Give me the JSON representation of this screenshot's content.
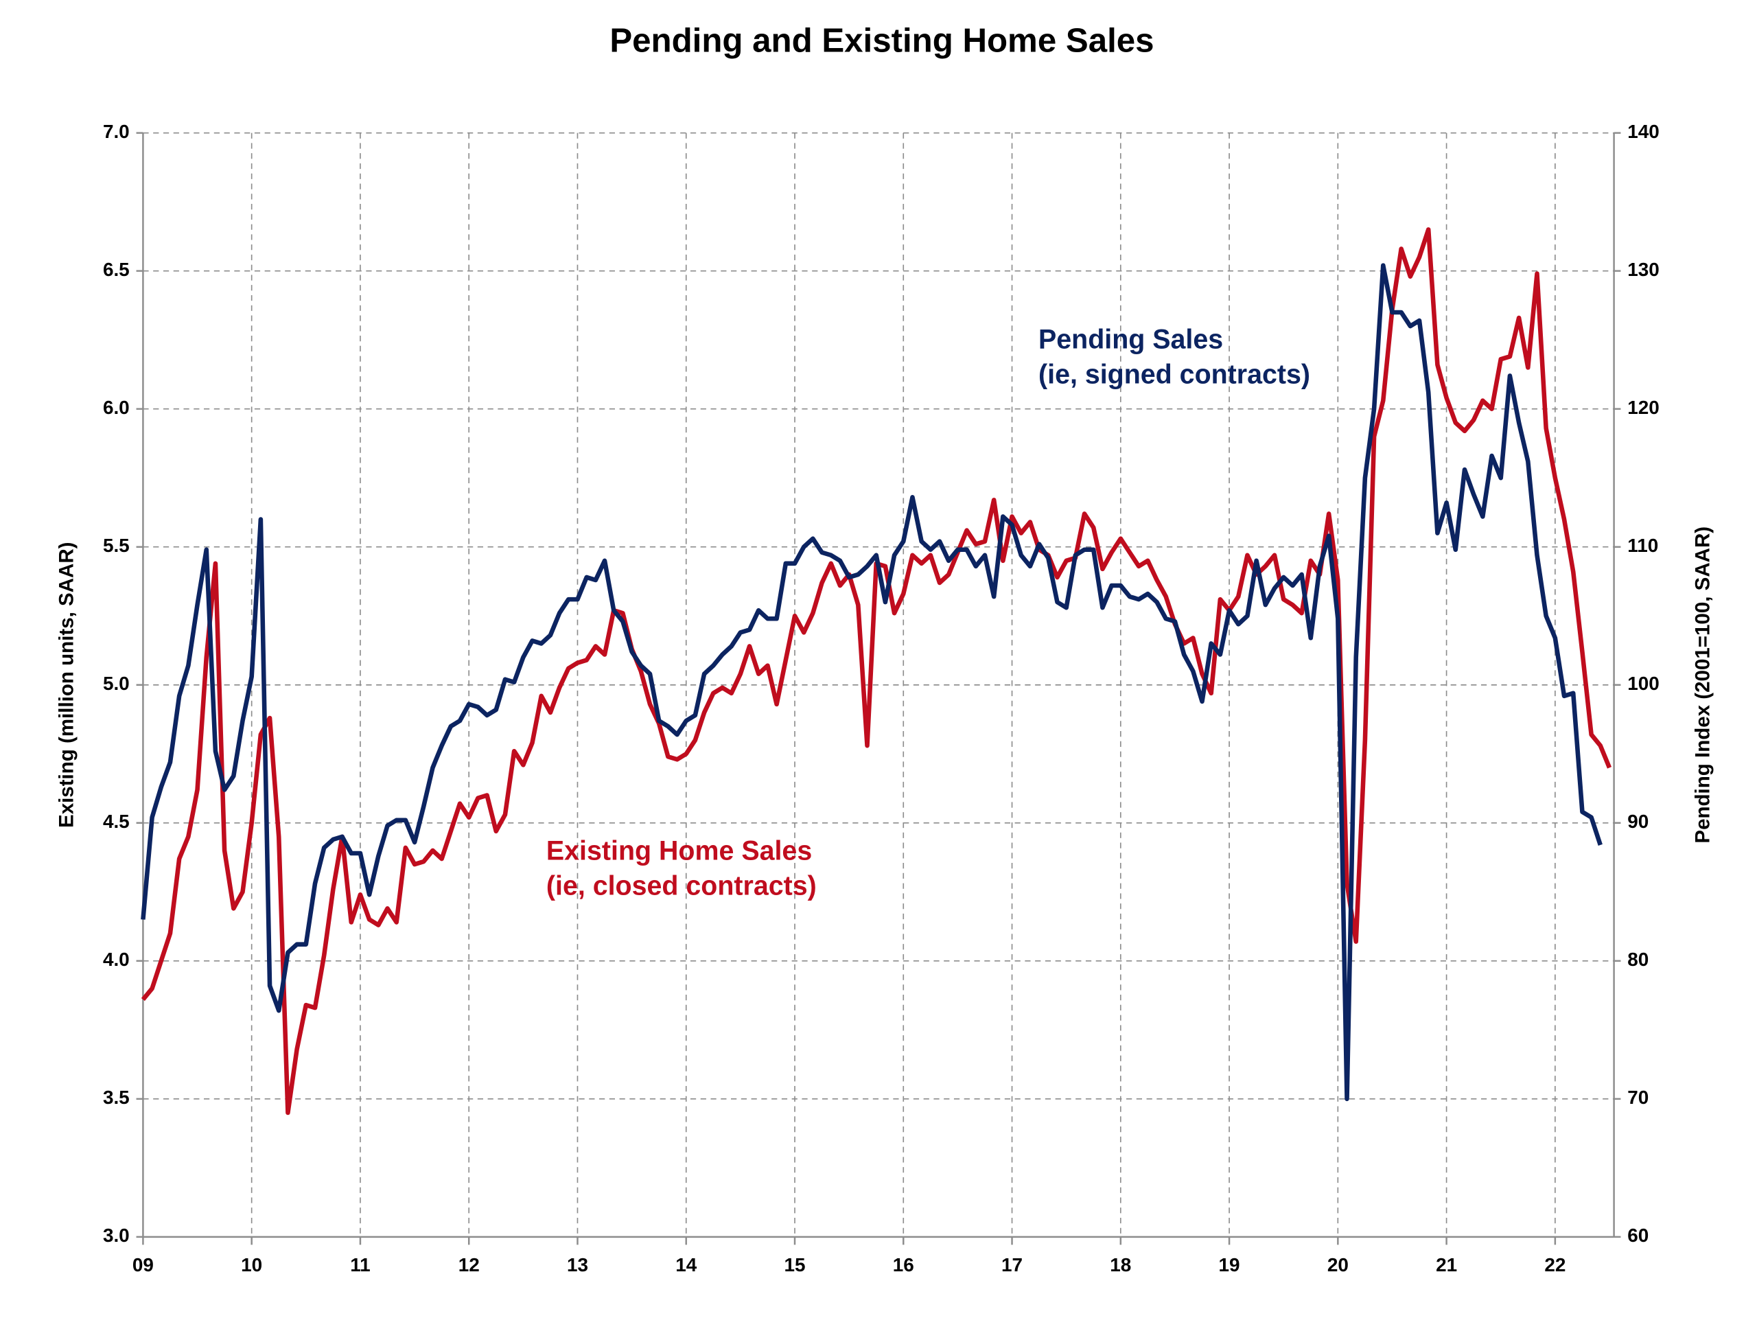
{
  "chart_data": {
    "type": "line",
    "title": "Pending and Existing Home Sales",
    "y_label": "Existing (million units, SAAR)",
    "y2_label": "Pending Index (2001=100, SAAR)",
    "ylim": [
      3,
      7
    ],
    "yticks": [
      {
        "value": 3,
        "label": "3.0"
      },
      {
        "value": 3.5,
        "label": "3.5"
      },
      {
        "value": 4,
        "label": "4.0"
      },
      {
        "value": 4.5,
        "label": "4.5"
      },
      {
        "value": 5,
        "label": "5.0"
      },
      {
        "value": 5.5,
        "label": "5.5"
      },
      {
        "value": 6,
        "label": "6.0"
      },
      {
        "value": 6.5,
        "label": "6.5"
      },
      {
        "value": 7,
        "label": "7.0"
      }
    ],
    "y2lim": [
      60,
      140
    ],
    "y2ticks": [
      60,
      70,
      80,
      90,
      100,
      110,
      120,
      130,
      140
    ],
    "grid": true,
    "categories": [
      "09",
      null,
      null,
      null,
      null,
      null,
      null,
      null,
      null,
      null,
      null,
      null,
      "10",
      null,
      null,
      null,
      null,
      null,
      null,
      null,
      null,
      null,
      null,
      null,
      "11",
      null,
      null,
      null,
      null,
      null,
      null,
      null,
      null,
      null,
      null,
      null,
      "12",
      null,
      null,
      null,
      null,
      null,
      null,
      null,
      null,
      null,
      null,
      null,
      "13",
      null,
      null,
      null,
      null,
      null,
      null,
      null,
      null,
      null,
      null,
      null,
      "14",
      null,
      null,
      null,
      null,
      null,
      null,
      null,
      null,
      null,
      null,
      null,
      "15",
      null,
      null,
      null,
      null,
      null,
      null,
      null,
      null,
      null,
      null,
      null,
      "16",
      null,
      null,
      null,
      null,
      null,
      null,
      null,
      null,
      null,
      null,
      null,
      "17",
      null,
      null,
      null,
      null,
      null,
      null,
      null,
      null,
      null,
      null,
      null,
      "18",
      null,
      null,
      null,
      null,
      null,
      null,
      null,
      null,
      null,
      null,
      null,
      "19",
      null,
      null,
      null,
      null,
      null,
      null,
      null,
      null,
      null,
      null,
      null,
      "20",
      null,
      null,
      null,
      null,
      null,
      null,
      null,
      null,
      null,
      null,
      null,
      "21",
      null,
      null,
      null,
      null,
      null,
      null,
      null,
      null,
      null,
      null,
      null,
      "22",
      null,
      null,
      null,
      null,
      null,
      null
    ],
    "series": [
      {
        "name": "Existing Home Sales",
        "description": "(ie, closed contracts)",
        "color": "#c00d1e",
        "axis": "y",
        "values": [
          3.86,
          3.9,
          4.0,
          4.1,
          4.37,
          4.45,
          4.62,
          5.1,
          5.44,
          4.4,
          4.19,
          4.25,
          4.5,
          4.82,
          4.88,
          4.45,
          3.45,
          3.68,
          3.84,
          3.83,
          4.02,
          4.26,
          4.45,
          4.14,
          4.24,
          4.15,
          4.13,
          4.19,
          4.14,
          4.41,
          4.35,
          4.36,
          4.4,
          4.37,
          4.47,
          4.57,
          4.52,
          4.59,
          4.6,
          4.47,
          4.53,
          4.76,
          4.71,
          4.79,
          4.96,
          4.9,
          4.99,
          5.06,
          5.08,
          5.09,
          5.14,
          5.11,
          5.27,
          5.26,
          5.13,
          5.05,
          4.93,
          4.86,
          4.74,
          4.73,
          4.75,
          4.8,
          4.9,
          4.97,
          4.99,
          4.97,
          5.04,
          5.14,
          5.04,
          5.07,
          4.93,
          5.09,
          5.25,
          5.19,
          5.26,
          5.37,
          5.44,
          5.36,
          5.4,
          5.29,
          4.78,
          5.44,
          5.43,
          5.26,
          5.33,
          5.47,
          5.44,
          5.47,
          5.37,
          5.4,
          5.48,
          5.56,
          5.51,
          5.52,
          5.67,
          5.45,
          5.61,
          5.55,
          5.59,
          5.49,
          5.47,
          5.39,
          5.45,
          5.46,
          5.62,
          5.57,
          5.42,
          5.48,
          5.53,
          5.48,
          5.43,
          5.45,
          5.38,
          5.32,
          5.22,
          5.15,
          5.17,
          5.04,
          4.97,
          5.31,
          5.27,
          5.32,
          5.47,
          5.4,
          5.43,
          5.47,
          5.31,
          5.29,
          5.26,
          5.45,
          5.4,
          5.62,
          5.38,
          4.28,
          4.07,
          4.8,
          5.9,
          6.03,
          6.36,
          6.58,
          6.48,
          6.55,
          6.65,
          6.16,
          6.04,
          5.95,
          5.92,
          5.96,
          6.03,
          6.0,
          6.18,
          6.19,
          6.33,
          6.15,
          6.49,
          5.93,
          5.75,
          5.6,
          5.41,
          5.12,
          4.82,
          4.78,
          4.7
        ]
      },
      {
        "name": "Pending Sales",
        "description": "(ie, signed contracts)",
        "color": "#0c2461",
        "axis": "y2",
        "values": [
          83.0,
          90.4,
          92.6,
          94.4,
          99.2,
          101.4,
          105.8,
          109.8,
          95.2,
          92.4,
          93.4,
          97.4,
          100.6,
          112.0,
          78.2,
          76.4,
          80.6,
          81.2,
          81.2,
          85.6,
          88.2,
          88.8,
          89.0,
          87.8,
          87.8,
          84.8,
          87.6,
          89.8,
          90.2,
          90.2,
          88.6,
          91.2,
          94.0,
          95.6,
          97.0,
          97.4,
          98.6,
          98.4,
          97.8,
          98.2,
          100.4,
          100.2,
          102.0,
          103.2,
          103.0,
          103.6,
          105.2,
          106.2,
          106.2,
          107.8,
          107.6,
          109.0,
          105.4,
          104.6,
          102.4,
          101.4,
          100.8,
          97.4,
          97.0,
          96.4,
          97.4,
          97.8,
          100.8,
          101.4,
          102.2,
          102.8,
          103.8,
          104.0,
          105.4,
          104.8,
          104.8,
          108.8,
          108.8,
          110.0,
          110.6,
          109.6,
          109.4,
          109.0,
          107.8,
          108.0,
          108.6,
          109.4,
          106.0,
          109.4,
          110.4,
          113.6,
          110.4,
          109.8,
          110.4,
          109.0,
          109.8,
          109.8,
          108.6,
          109.4,
          106.4,
          112.2,
          111.6,
          109.4,
          108.6,
          110.2,
          109.2,
          106.0,
          105.6,
          109.4,
          109.8,
          109.8,
          105.6,
          107.2,
          107.2,
          106.4,
          106.2,
          106.6,
          106.0,
          104.8,
          104.6,
          102.2,
          101.0,
          98.8,
          103.0,
          102.2,
          105.4,
          104.4,
          105.0,
          109.0,
          105.8,
          107.0,
          107.8,
          107.2,
          108.0,
          103.4,
          108.6,
          110.8,
          104.8,
          70.0,
          102.0,
          115.0,
          120.0,
          130.4,
          127.0,
          127.0,
          126.0,
          126.4,
          121.2,
          111.0,
          113.2,
          109.8,
          115.6,
          113.8,
          112.2,
          116.6,
          115.0,
          122.4,
          119.0,
          116.2,
          109.4,
          105.0,
          103.4,
          99.2,
          99.4,
          90.8,
          90.4,
          88.4,
          null
        ]
      }
    ]
  }
}
